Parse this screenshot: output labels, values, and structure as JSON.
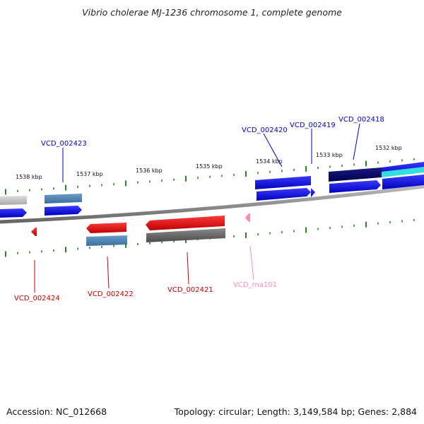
{
  "title": "Vibrio cholerae MJ-1236 chromosome 1, complete genome",
  "footer": {
    "accession": "Accession: NC_012668",
    "topology": "Topology: circular; Length: 3,149,584 bp; Genes: 2,884"
  },
  "scale_labels": [
    "1538 kbp",
    "1537 kbp",
    "1536 kbp",
    "1535 kbp",
    "1534 kbp",
    "1533 kbp",
    "1532 kbp"
  ],
  "gene_labels": [
    {
      "text": "VCD_002423",
      "color": "#0000cc"
    },
    {
      "text": "VCD_002420",
      "color": "#0000cc"
    },
    {
      "text": "VCD_002419",
      "color": "#0000cc"
    },
    {
      "text": "VCD_002418",
      "color": "#0000cc"
    },
    {
      "text": "VCD_002424",
      "color": "#cc0000"
    },
    {
      "text": "VCD_002422",
      "color": "#cc0000"
    },
    {
      "text": "VCD_002421",
      "color": "#cc0000"
    },
    {
      "text": "VCD_rna101",
      "color": "#ff88bb"
    }
  ],
  "colors": {
    "forward_cds": "#0000ee",
    "reverse_cds": "#ee0000",
    "rna": "#ff88bb",
    "tick": "#228822",
    "backbone": "#888888",
    "cog_blue": "#4682b4",
    "cog_gray": "#666666",
    "cog_navy": "#000066",
    "cog_cyan": "#33dddd"
  }
}
